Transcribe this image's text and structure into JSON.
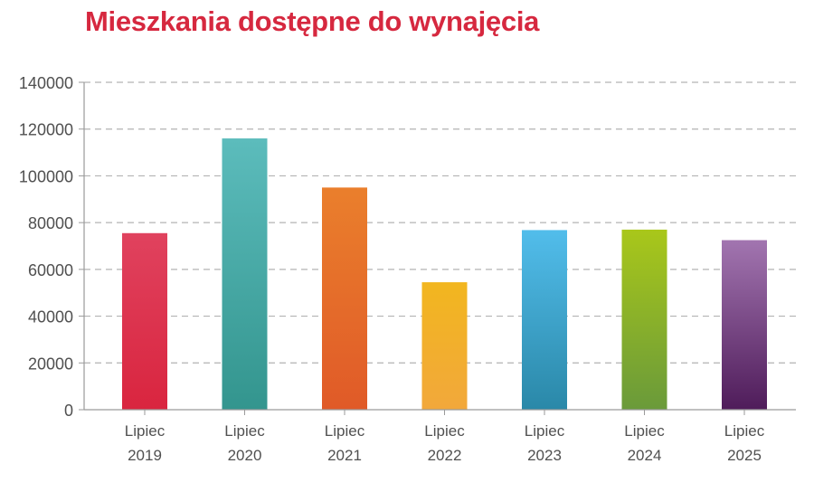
{
  "chart_data": {
    "type": "bar",
    "title": "Mieszkania dostępne do wynajęcia",
    "categories": [
      [
        "Lipiec",
        "2019"
      ],
      [
        "Lipiec",
        "2020"
      ],
      [
        "Lipiec",
        "2021"
      ],
      [
        "Lipiec",
        "2022"
      ],
      [
        "Lipiec",
        "2023"
      ],
      [
        "Lipiec",
        "2024"
      ],
      [
        "Lipiec",
        "2025"
      ]
    ],
    "values": [
      75500,
      116000,
      95000,
      54500,
      76800,
      77000,
      72500
    ],
    "ylim": [
      0,
      140000
    ],
    "yticks": [
      0,
      20000,
      40000,
      60000,
      80000,
      100000,
      120000,
      140000
    ],
    "grid": true,
    "colors": [
      [
        "#e0425e",
        "#d9253f"
      ],
      [
        "#5cbcbc",
        "#33958e"
      ],
      [
        "#ea7f2c",
        "#e05a28"
      ],
      [
        "#f2b61f",
        "#f2a83b"
      ],
      [
        "#52bdeb",
        "#2a88a8"
      ],
      [
        "#a9c71a",
        "#6a9a3a"
      ],
      [
        "#a275b0",
        "#4f1c5a"
      ]
    ]
  }
}
